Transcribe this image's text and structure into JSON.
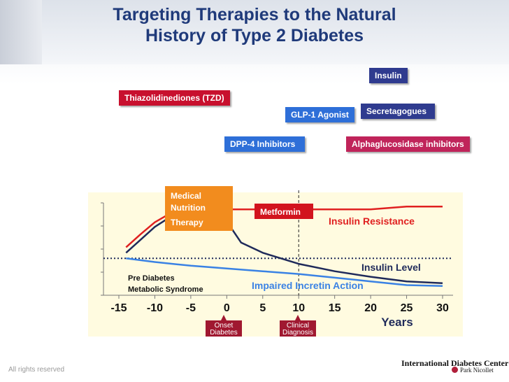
{
  "slide": {
    "title_line1": "Targeting Therapies to the Natural",
    "title_line2": "History of Type 2 Diabetes",
    "footer_left": "All rights reserved",
    "footer_right": "International Diabetes Center",
    "footer_right_sub": "Park Nicollet"
  },
  "therapies": {
    "insulin": "Insulin",
    "tzd": "Thiazolidinediones (TZD)",
    "glp1": "GLP-1 Agonist",
    "secretagogues": "Secretagogues",
    "dpp4": "DPP-4 Inhibitors",
    "agi": "Alphaglucosidase inhibitors",
    "mnt_line1": "Medical",
    "mnt_line2": "Nutrition",
    "mnt_line3": "Therapy",
    "metformin": "Metformin"
  },
  "colors": {
    "insulin": "#2f3b8f",
    "tzd": "#c8102e",
    "glp1": "#2e6fd8",
    "secretagogues": "#2f3b8f",
    "dpp4": "#2e6fd8",
    "agi": "#c0245a",
    "mnt": "#f28c1e",
    "metformin": "#d2141e",
    "insulin_resistance": "#e02020",
    "insulin_level": "#1f2a5a",
    "incretin": "#3a82e4",
    "dotted": "#1f2a5a",
    "marker": "#a01830"
  },
  "chart_data": {
    "type": "line",
    "title": "Targeting Therapies to the Natural History of Type 2 Diabetes",
    "xlabel": "Years",
    "ylabel": "",
    "x_ticks": [
      -15,
      -10,
      -5,
      0,
      5,
      10,
      15,
      20,
      25,
      30
    ],
    "xlim": [
      -15,
      30
    ],
    "ylim": [
      0,
      100
    ],
    "series": [
      {
        "name": "Insulin Resistance",
        "x": [
          -14,
          -12,
          -10,
          -8,
          -6,
          -4,
          -2,
          0,
          5,
          10,
          15,
          20,
          25,
          30
        ],
        "values": [
          52,
          66,
          79,
          88,
          92,
          93,
          93,
          93,
          93,
          93,
          93,
          93,
          96,
          96
        ]
      },
      {
        "name": "Insulin Level",
        "x": [
          -14,
          -12,
          -10,
          -8,
          -6,
          -4,
          -2,
          0,
          2,
          5,
          10,
          15,
          20,
          25,
          30
        ],
        "values": [
          46,
          60,
          74,
          84,
          89,
          90,
          88,
          80,
          57,
          46,
          34,
          26,
          20,
          15,
          13
        ]
      },
      {
        "name": "Impaired Incretin Action",
        "x": [
          -14,
          -10,
          -5,
          0,
          5,
          10,
          15,
          20,
          25,
          30
        ],
        "values": [
          40,
          36,
          32,
          29,
          26,
          23,
          19,
          15,
          11,
          10
        ]
      }
    ],
    "series_labels": {
      "insulin_resistance": "Insulin Resistance",
      "insulin_level": "Insulin Level",
      "incretin": "Impaired Incretin Action"
    },
    "threshold_y": 40,
    "vertical_marker_x": 10,
    "annotations": {
      "prediabetes_line1": "Pre Diabetes",
      "prediabetes_line2": "Metabolic Syndrome",
      "onset_line1": "Onset",
      "onset_line2": "Diabetes",
      "clinical_line1": "Clinical",
      "clinical_line2": "Diagnosis"
    }
  }
}
